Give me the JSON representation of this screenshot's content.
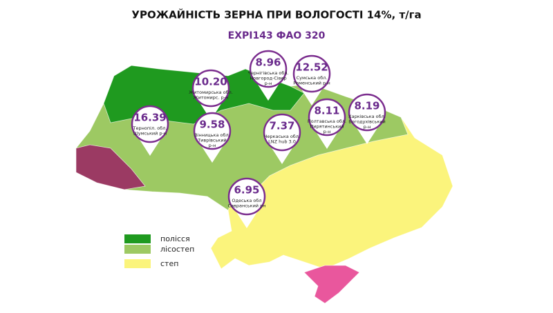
{
  "header": {
    "title": "УРОЖАЙНІСТЬ ЗЕРНА ПРИ ВОЛОГОСТІ 14%, т/га",
    "subtitle": "EXPI143 ФАО 320"
  },
  "pins": [
    {
      "value": "10.20",
      "lines": [
        "Житомирська обл.",
        "Житомирс. р-н"
      ]
    },
    {
      "value": "8.96",
      "lines": [
        "Чернігівська обл.",
        "Новгород-Сівер",
        "р-н"
      ]
    },
    {
      "value": "12.52",
      "lines": [
        "Сумська обл.",
        "Роменський р-н"
      ]
    },
    {
      "value": "16.39",
      "lines": [
        "Тернопіл. обл.",
        "Шумський р-н"
      ]
    },
    {
      "value": "9.58",
      "lines": [
        "Вінницька обл.",
        "Тиврівський",
        "р-н"
      ]
    },
    {
      "value": "7.37",
      "lines": [
        "Черкаська обл.",
        "LNZ hub 3.0"
      ]
    },
    {
      "value": "8.11",
      "lines": [
        "Полтавська обл.",
        "Пирятинський",
        "р-н"
      ]
    },
    {
      "value": "8.19",
      "lines": [
        "Харківська обл.",
        "Богодухівський",
        "р-н"
      ]
    },
    {
      "value": "6.95",
      "lines": [
        "Одеська обл",
        "Савранський рн"
      ]
    }
  ],
  "legend": [
    {
      "label": "полісся",
      "color": "#1f9a1f"
    },
    {
      "label": "лісостеп",
      "color": "#9dc963"
    },
    {
      "label": "степ",
      "color": "#fbf47c"
    }
  ]
}
